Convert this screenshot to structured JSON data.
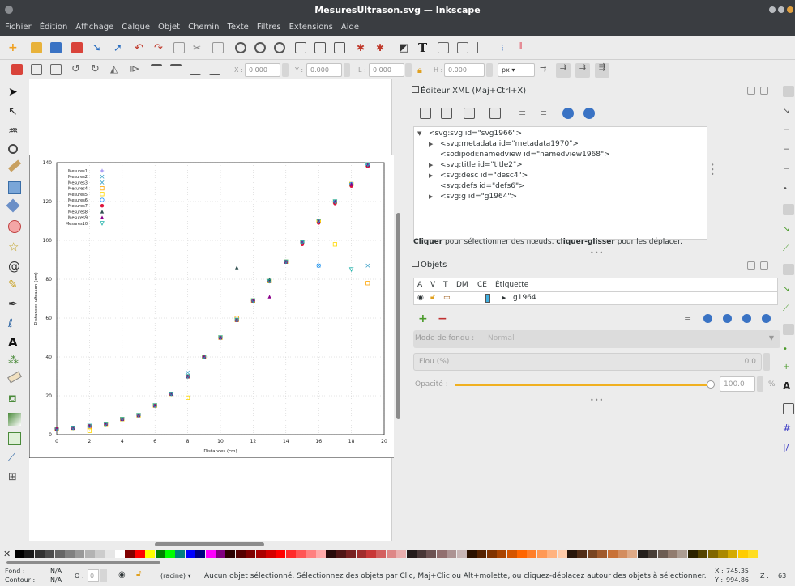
{
  "window": {
    "title": "MesuresUltrason.svg — Inkscape"
  },
  "menu": [
    "Fichier",
    "Édition",
    "Affichage",
    "Calque",
    "Objet",
    "Chemin",
    "Texte",
    "Filtres",
    "Extensions",
    "Aide"
  ],
  "toolbar2": {
    "x_label": "X :",
    "x_value": "0.000",
    "y_label": "Y :",
    "y_value": "0.000",
    "w_label": "L :",
    "w_value": "0.000",
    "h_label": "H :",
    "h_value": "0.000",
    "unit": "px"
  },
  "xml_editor": {
    "title": "Éditeur XML (Maj+Ctrl+X)",
    "nodes": [
      "<svg:svg id=\"svg1966\">",
      "<svg:metadata id=\"metadata1970\">",
      "<sodipodi:namedview id=\"namedview1968\">",
      "<svg:title id=\"title2\">",
      "<svg:desc id=\"desc4\">",
      "<svg:defs id=\"defs6\">",
      "<svg:g id=\"g1964\">"
    ],
    "hint_bold1": "Cliquer",
    "hint_text1": " pour sélectionner des nœuds, ",
    "hint_bold2": "cliquer-glisser",
    "hint_text2": " pour les déplacer."
  },
  "objects": {
    "title": "Objets",
    "columns": [
      "A",
      "V",
      "T",
      "DM",
      "CE",
      "Étiquette"
    ],
    "row_label": "g1964",
    "blend_label": "Mode de fondu :",
    "blend_value": "Normal",
    "blur_label": "Flou (%)",
    "blur_value": "0.0",
    "opacity_label": "Opacité :",
    "opacity_value": "100.0",
    "opacity_unit": "%"
  },
  "status": {
    "fill_label": "Fond :",
    "fill_value": "N/A",
    "stroke_label": "Contour :",
    "stroke_value": "N/A",
    "o_label": "O :",
    "o_value": "0",
    "layer": "(racine)",
    "message": "Aucun objet sélectionné. Sélectionnez des objets par Clic, Maj+Clic ou Alt+molette, ou cliquez-déplacez autour des objets à sélectionner.",
    "x_label": "X :",
    "x_value": "745.35",
    "y_label": "Y :",
    "y_value": "994.86",
    "z_label": "Z :",
    "z_value": "63"
  },
  "chart_data": {
    "type": "scatter",
    "xlabel": "Distances (cm)",
    "ylabel": "Distances ultrason (cm)",
    "xlim": [
      0,
      20
    ],
    "ylim": [
      0,
      140
    ],
    "xticks": [
      0,
      2,
      4,
      6,
      8,
      10,
      12,
      14,
      16,
      18,
      20
    ],
    "yticks": [
      0,
      20,
      40,
      60,
      80,
      100,
      120,
      140
    ],
    "grid": true,
    "legend": "top-left",
    "x": [
      0,
      1,
      2,
      3,
      4,
      5,
      6,
      7,
      8,
      9,
      10,
      11,
      12,
      13,
      14,
      15,
      16,
      17,
      18,
      19
    ],
    "series": [
      {
        "name": "Mesures1",
        "color": "#7b68ee",
        "marker": "+",
        "values": [
          3,
          3.5,
          4.5,
          5.5,
          8,
          10,
          15,
          21,
          30,
          40,
          50,
          59,
          69,
          79,
          89,
          99,
          110,
          120,
          129,
          139
        ]
      },
      {
        "name": "Mesures2",
        "color": "#3aa0c8",
        "marker": "x",
        "values": [
          3,
          3.5,
          4.5,
          5.5,
          8,
          10,
          15,
          21,
          30,
          40,
          50,
          59,
          69,
          79,
          89,
          99,
          110,
          120,
          129,
          139
        ]
      },
      {
        "name": "Mesures3",
        "color": "#3aa0c8",
        "marker": "x",
        "values": [
          3,
          3.5,
          4.5,
          5.5,
          8,
          10,
          15,
          21,
          32,
          40,
          50,
          59,
          69,
          79,
          89,
          99,
          87,
          120,
          129,
          87
        ]
      },
      {
        "name": "Mesures4",
        "color": "#ffa500",
        "marker": "square",
        "values": [
          3,
          3.5,
          4,
          5.5,
          8,
          10,
          15,
          21,
          30,
          40,
          50,
          60,
          69,
          79,
          89,
          99,
          110,
          120,
          129,
          78
        ]
      },
      {
        "name": "Mesures5",
        "color": "#ffd700",
        "marker": "square",
        "values": [
          3,
          3.5,
          2,
          5.5,
          8,
          10,
          15,
          21,
          19,
          40,
          50,
          59,
          69,
          79,
          89,
          99,
          110,
          98,
          129,
          139
        ]
      },
      {
        "name": "Mesures6",
        "color": "#1e90ff",
        "marker": "circle",
        "values": [
          3,
          3.5,
          4.5,
          5.5,
          8,
          10,
          15,
          21,
          30,
          40,
          50,
          59,
          69,
          79,
          89,
          99,
          87,
          120,
          129,
          139
        ]
      },
      {
        "name": "Mesures7",
        "color": "#dc143c",
        "marker": "dot",
        "values": [
          3,
          3.5,
          4.5,
          5.5,
          8,
          10,
          15,
          21,
          30,
          40,
          50,
          59,
          69,
          79,
          89,
          98,
          109,
          119,
          128,
          138
        ]
      },
      {
        "name": "Mesures8",
        "color": "#2f4f4f",
        "marker": "triangle",
        "values": [
          3,
          3.5,
          4.5,
          5.5,
          8,
          10,
          15,
          21,
          30,
          40,
          50,
          86,
          69,
          80,
          89,
          99,
          110,
          120,
          129,
          139
        ]
      },
      {
        "name": "Mesures9",
        "color": "#8b008b",
        "marker": "triangle",
        "values": [
          3,
          3.5,
          4.5,
          5.5,
          8,
          10,
          15,
          21,
          30,
          40,
          50,
          59,
          69,
          71,
          89,
          99,
          110,
          120,
          129,
          139
        ]
      },
      {
        "name": "Mesures10",
        "color": "#20b2aa",
        "marker": "triangle-down",
        "values": [
          3,
          3.5,
          4.5,
          5.5,
          8,
          10,
          15,
          21,
          30,
          40,
          50,
          59,
          69,
          79,
          89,
          99,
          110,
          120,
          85,
          139
        ]
      }
    ]
  }
}
